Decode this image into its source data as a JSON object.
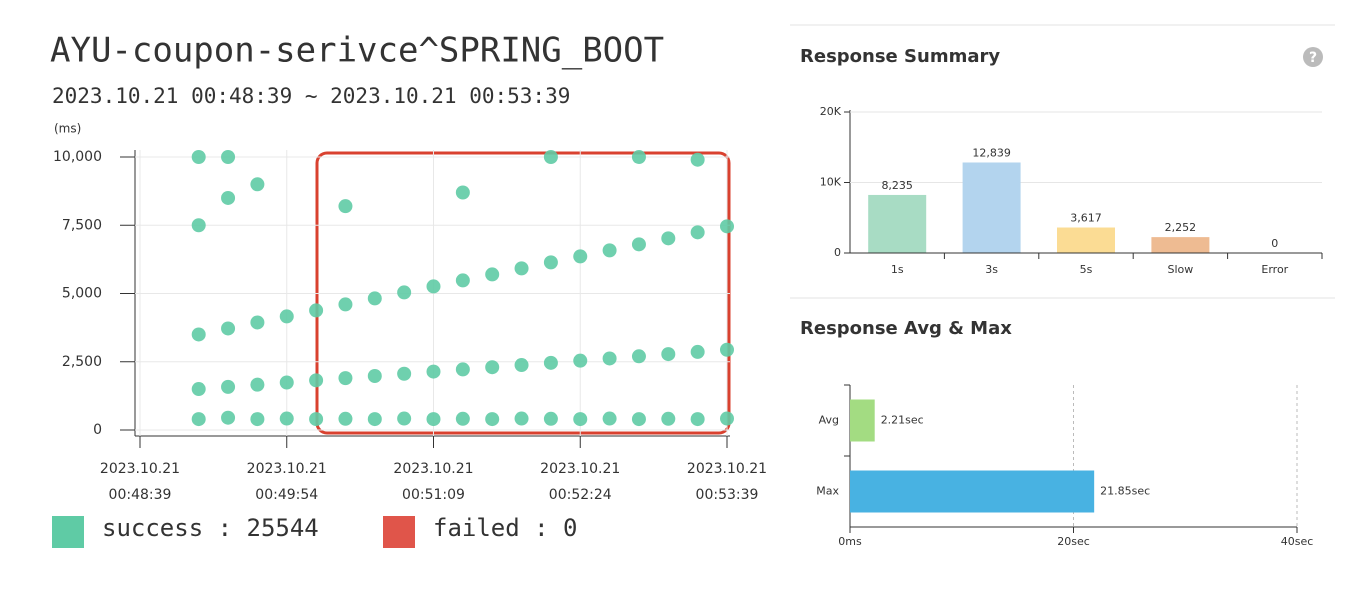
{
  "header": {
    "title": "AYU-coupon-serivce^SPRING_BOOT",
    "subtitle": "2023.10.21 00:48:39 ~ 2023.10.21 00:53:39"
  },
  "help_icon": "?",
  "chart_data": [
    {
      "type": "scatter",
      "y_unit": "(ms)",
      "xlim": [
        "00:48:39",
        "00:53:39"
      ],
      "xticks": [
        {
          "value": "00:48:39",
          "label": [
            "2023.10.21",
            "00:48:39"
          ]
        },
        {
          "value": "00:49:54",
          "label": [
            "2023.10.21",
            "00:49:54"
          ]
        },
        {
          "value": "00:51:09",
          "label": [
            "2023.10.21",
            "00:51:09"
          ]
        },
        {
          "value": "00:52:24",
          "label": [
            "2023.10.21",
            "00:52:24"
          ]
        },
        {
          "value": "00:53:39",
          "label": [
            "2023.10.21",
            "00:53:39"
          ]
        }
      ],
      "ylim": [
        0,
        10000
      ],
      "yticks": [
        0,
        {
          "value": 2500,
          "label": "2,500"
        },
        {
          "value": 5000,
          "label": "5,000"
        },
        {
          "value": 7500,
          "label": "7,500"
        },
        {
          "value": 10000,
          "label": "10,000"
        }
      ],
      "grid": true,
      "series": [
        {
          "name": "success : 25544",
          "color": "#5fcba5",
          "x": [
            "00:49:09",
            "00:49:24",
            "00:49:39",
            "00:49:54",
            "00:50:09",
            "00:50:24",
            "00:50:39",
            "00:50:54",
            "00:51:09",
            "00:51:24",
            "00:51:39",
            "00:51:54",
            "00:52:09",
            "00:52:24",
            "00:52:39",
            "00:52:54",
            "00:53:09",
            "00:53:24",
            "00:53:39",
            "00:49:09",
            "00:49:24",
            "00:49:39",
            "00:49:54",
            "00:50:09",
            "00:50:24",
            "00:50:39",
            "00:50:54",
            "00:51:09",
            "00:51:24",
            "00:51:39",
            "00:51:54",
            "00:52:09",
            "00:52:24",
            "00:52:39",
            "00:52:54",
            "00:53:09",
            "00:53:24",
            "00:53:39",
            "00:49:09",
            "00:49:24",
            "00:49:39",
            "00:49:54",
            "00:50:09",
            "00:50:24",
            "00:50:39",
            "00:50:54",
            "00:51:09",
            "00:51:24",
            "00:51:39",
            "00:51:54",
            "00:52:09",
            "00:52:24",
            "00:52:39",
            "00:52:54",
            "00:53:09",
            "00:53:24",
            "00:53:39",
            "00:49:09",
            "00:49:09",
            "00:49:24",
            "00:49:24",
            "00:49:39",
            "00:50:24",
            "00:51:24",
            "00:52:09",
            "00:52:54",
            "00:53:24"
          ],
          "values": [
            400,
            450,
            400,
            420,
            400,
            410,
            400,
            420,
            400,
            410,
            400,
            420,
            410,
            400,
            420,
            400,
            410,
            400,
            420,
            1500,
            1580,
            1660,
            1740,
            1820,
            1900,
            1980,
            2060,
            2140,
            2220,
            2300,
            2380,
            2460,
            2540,
            2620,
            2700,
            2780,
            2860,
            2940,
            3500,
            3720,
            3940,
            4160,
            4380,
            4600,
            4820,
            5040,
            5260,
            5480,
            5700,
            5920,
            6140,
            6360,
            6580,
            6800,
            7020,
            7240,
            7460,
            7500,
            10000,
            8500,
            10000,
            9000,
            8200,
            8700,
            10000,
            10000,
            9900
          ]
        },
        {
          "name": "failed : 0",
          "color": "#e0554a",
          "x": [],
          "values": []
        }
      ]
    },
    {
      "type": "bar",
      "title": "Response Summary",
      "categories": [
        "1s",
        "3s",
        "5s",
        "Slow",
        "Error"
      ],
      "values": [
        8235,
        12839,
        3617,
        2252,
        0
      ],
      "value_labels": [
        "8,235",
        "12,839",
        "3,617",
        "2,252",
        "0"
      ],
      "colors": [
        "#a8dcc4",
        "#b3d4ee",
        "#fbdc94",
        "#eebb92",
        "#cccccc"
      ],
      "ylim": [
        0,
        20000
      ],
      "yticks": [
        0,
        {
          "value": 10000,
          "label": "10K"
        },
        {
          "value": 20000,
          "label": "20K"
        }
      ],
      "grid": true
    },
    {
      "type": "barh",
      "title": "Response Avg & Max",
      "categories": [
        "Avg",
        "Max"
      ],
      "values": [
        2.21,
        21.85
      ],
      "value_labels": [
        "2.21sec",
        "21.85sec"
      ],
      "colors": [
        "#a3dc82",
        "#48b2e2"
      ],
      "xlim": [
        0,
        40
      ],
      "xticks": [
        {
          "value": 0,
          "label": "0ms"
        },
        {
          "value": 20,
          "label": "20sec"
        },
        {
          "value": 40,
          "label": "40sec"
        }
      ],
      "grid": true
    }
  ]
}
